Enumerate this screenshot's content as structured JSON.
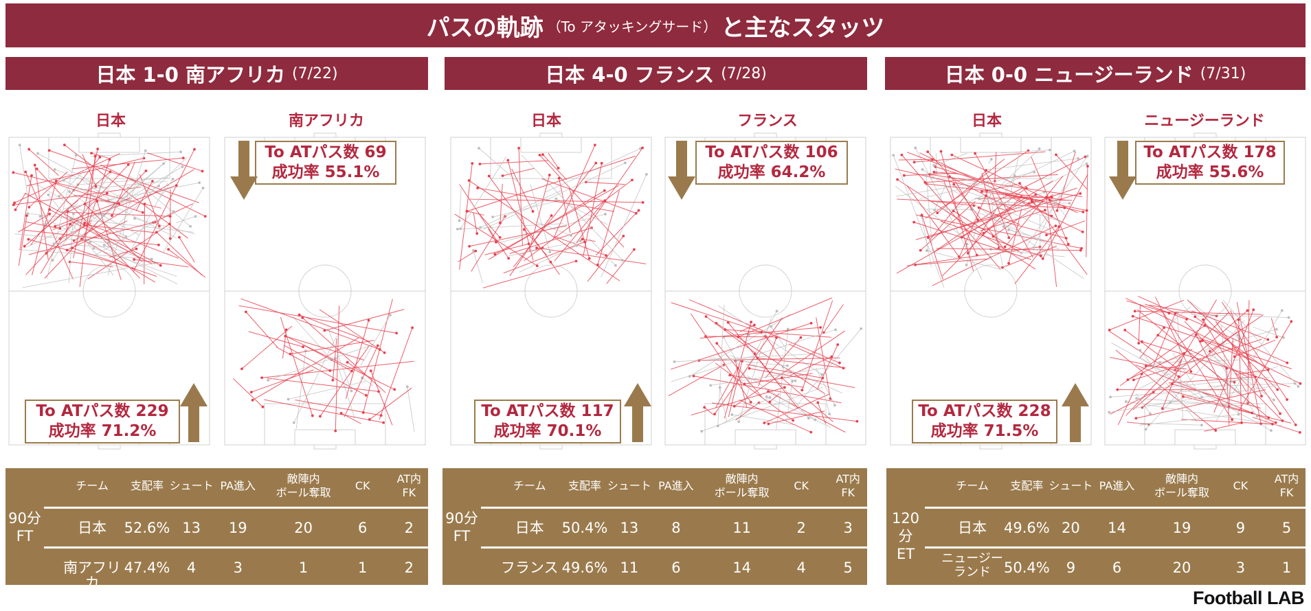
{
  "header": {
    "title_main": "パスの軌跡",
    "title_paren": "（To アタッキングサード）",
    "title_tail": "と主なスタッツ"
  },
  "colors": {
    "banner": "#8f2b3e",
    "gold": "#9a7a4c",
    "pass": "#e8404f",
    "fail": "#bdbdbd"
  },
  "columns": [
    "チーム",
    "支配率",
    "シュート",
    "PA進入",
    "敵陣内\nボール奪取",
    "CK",
    "AT内\nFK"
  ],
  "matches": [
    {
      "title": "日本 1-0 南アフリカ",
      "date": "(7/22)",
      "team_top": "日本",
      "team_bottom": "南アフリカ",
      "japan_box": {
        "line1": "To ATパス数 229",
        "line2": "成功率 71.2%"
      },
      "opp_box": {
        "line1": "To ATパス数 69",
        "line2": "成功率 55.1%"
      },
      "period": "90分\nFT",
      "rows": [
        [
          "日本",
          "52.6%",
          "13",
          "19",
          "20",
          "6",
          "2"
        ],
        [
          "南アフリカ",
          "47.4%",
          "4",
          "3",
          "1",
          "1",
          "2"
        ]
      ]
    },
    {
      "title": "日本 4-0 フランス",
      "date": "(7/28)",
      "team_top": "日本",
      "team_bottom": "フランス",
      "japan_box": {
        "line1": "To ATパス数 117",
        "line2": "成功率 70.1%"
      },
      "opp_box": {
        "line1": "To ATパス数 106",
        "line2": "成功率 64.2%"
      },
      "period": "90分\nFT",
      "rows": [
        [
          "日本",
          "50.4%",
          "13",
          "8",
          "11",
          "2",
          "3"
        ],
        [
          "フランス",
          "49.6%",
          "11",
          "6",
          "14",
          "4",
          "5"
        ]
      ]
    },
    {
      "title": "日本 0-0 ニュージーランド",
      "date": "(7/31)",
      "team_top": "日本",
      "team_bottom": "ニュージーランド",
      "japan_box": {
        "line1": "To ATパス数 228",
        "line2": "成功率 71.5%"
      },
      "opp_box": {
        "line1": "To ATパス数 178",
        "line2": "成功率 55.6%"
      },
      "period": "120分\nET",
      "rows": [
        [
          "日本",
          "49.6%",
          "20",
          "14",
          "19",
          "9",
          "5"
        ],
        [
          "ニュージー\nランド",
          "50.4%",
          "9",
          "6",
          "20",
          "3",
          "1"
        ]
      ]
    }
  ],
  "logo": "Football LAB"
}
